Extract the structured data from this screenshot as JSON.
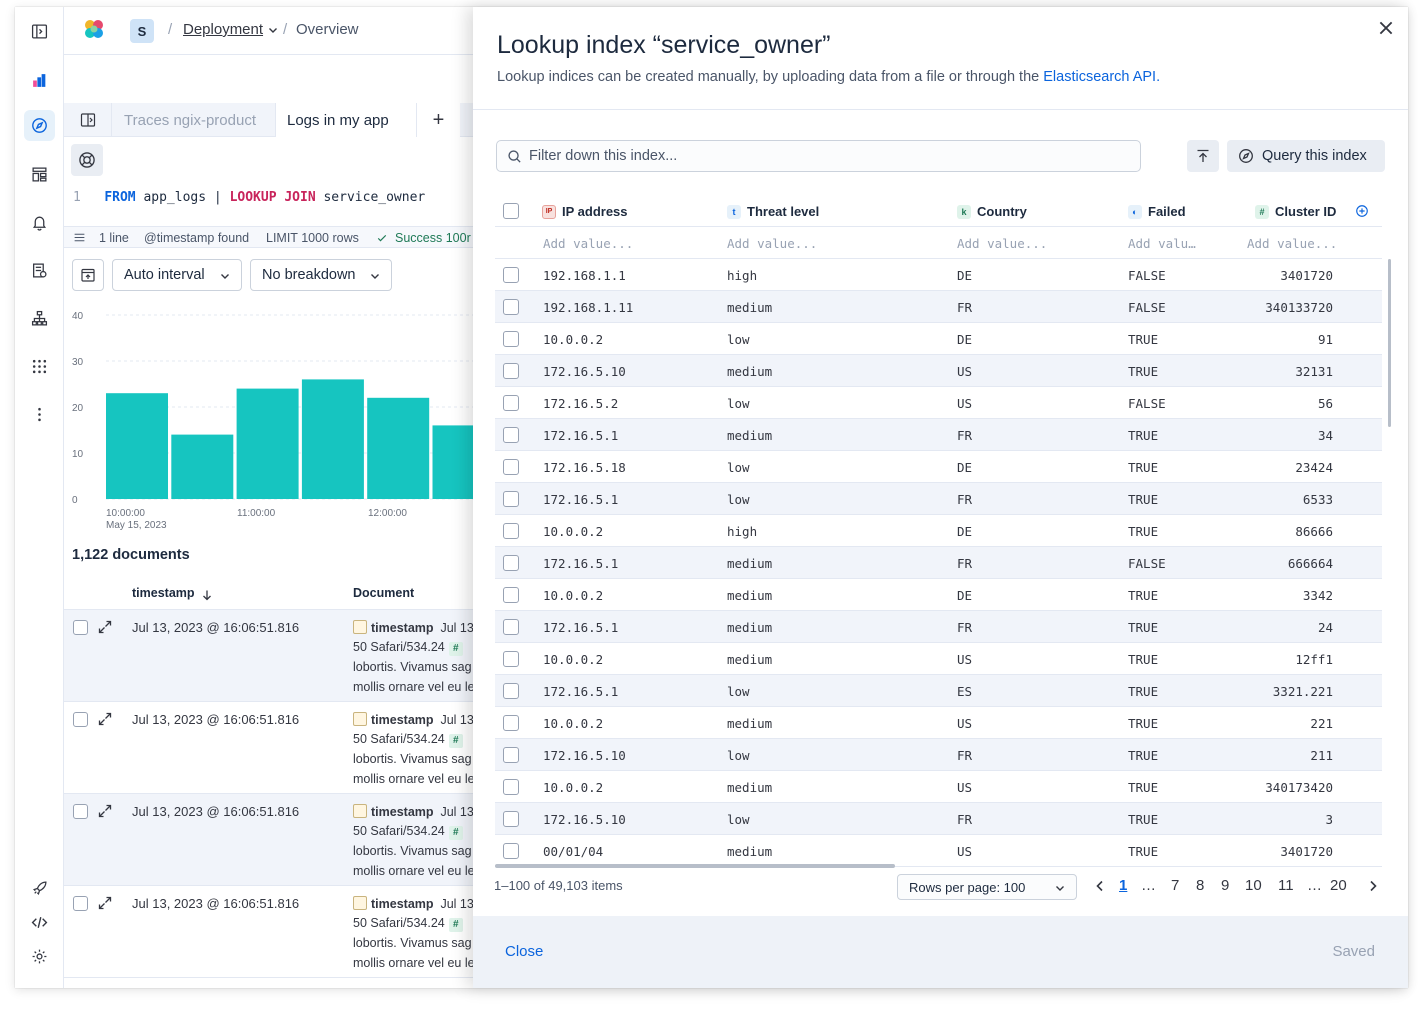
{
  "header": {
    "space_initial": "S",
    "breadcrumb_1": "Deployment",
    "breadcrumb_2": "Overview"
  },
  "tabs": [
    {
      "label": "Traces ngix-product"
    },
    {
      "label": "Logs in my app"
    }
  ],
  "query": {
    "line_no": "1",
    "from_kw": "FROM",
    "source": "app_logs",
    "pipe": "|",
    "lookup_kw": "LOOKUP JOIN",
    "target": "service_owner"
  },
  "status": {
    "lines": "1 line",
    "timestamp": "@timestamp found",
    "limit": "LIMIT 1000 rows",
    "success": "Success 100r"
  },
  "chart_controls": {
    "interval": "Auto interval",
    "breakdown": "No breakdown"
  },
  "chart_data": {
    "type": "bar",
    "y_ticks": [
      "40",
      "30",
      "20",
      "10",
      "0"
    ],
    "ylim": [
      0,
      40
    ],
    "x_ticks": [
      "10:00:00",
      "11:00:00",
      "12:00:00"
    ],
    "x_subtitle": "May 15, 2023",
    "values": [
      23,
      14,
      24,
      26,
      22,
      16
    ]
  },
  "documents": {
    "count": "1,122 documents",
    "col_timestamp": "timestamp",
    "col_document": "Document",
    "rows": [
      {
        "ts": "Jul 13, 2023 @ 16:06:51.816",
        "field": "timestamp",
        "field_val": "Jul 13",
        "line2": "50 Safari/534.24",
        "line3": "lobortis. Vivamus sag",
        "line4": "mollis ornare vel eu le"
      },
      {
        "ts": "Jul 13, 2023 @ 16:06:51.816",
        "field": "timestamp",
        "field_val": "Jul 13",
        "line2": "50 Safari/534.24",
        "line3": "lobortis. Vivamus sag",
        "line4": "mollis ornare vel eu le"
      },
      {
        "ts": "Jul 13, 2023 @ 16:06:51.816",
        "field": "timestamp",
        "field_val": "Jul 13",
        "line2": "50 Safari/534.24",
        "line3": "lobortis. Vivamus sag",
        "line4": "mollis ornare vel eu le"
      },
      {
        "ts": "Jul 13, 2023 @ 16:06:51.816",
        "field": "timestamp",
        "field_val": "Jul 13",
        "line2": "50 Safari/534.24",
        "line3": "lobortis. Vivamus sag",
        "line4": "mollis ornare vel eu le"
      }
    ]
  },
  "flyout": {
    "title": "Lookup index “service_owner”",
    "desc": "Lookup indices can be created manually, by uploading data from a file or through the",
    "desc_link": "Elasticsearch API.",
    "filter_placeholder": "Filter down this index...",
    "query_button": "Query this index",
    "columns": [
      {
        "label": "IP address",
        "type_icon": "IP"
      },
      {
        "label": "Threat level",
        "type_icon": "t"
      },
      {
        "label": "Country",
        "type_icon": "k"
      },
      {
        "label": "Failed",
        "type_icon": "◐"
      },
      {
        "label": "Cluster ID",
        "type_icon": "#"
      }
    ],
    "add_value": [
      "Add value...",
      "Add value...",
      "Add value...",
      "Add valu…",
      "Add value..."
    ],
    "rows": [
      [
        "192.168.1.1",
        "high",
        "DE",
        "FALSE",
        "3401720"
      ],
      [
        "192.168.1.11",
        "medium",
        "FR",
        "FALSE",
        "340133720"
      ],
      [
        "10.0.0.2",
        "low",
        "DE",
        "TRUE",
        "91"
      ],
      [
        "172.16.5.10",
        "medium",
        "US",
        "TRUE",
        "32131"
      ],
      [
        "172.16.5.2",
        "low",
        "US",
        "FALSE",
        "56"
      ],
      [
        "172.16.5.1",
        "medium",
        "FR",
        "TRUE",
        "34"
      ],
      [
        "172.16.5.18",
        "low",
        "DE",
        "TRUE",
        "23424"
      ],
      [
        "172.16.5.1",
        "low",
        "FR",
        "TRUE",
        "6533"
      ],
      [
        "10.0.0.2",
        "high",
        "DE",
        "TRUE",
        "86666"
      ],
      [
        "172.16.5.1",
        "medium",
        "FR",
        "FALSE",
        "666664"
      ],
      [
        "10.0.0.2",
        "medium",
        "DE",
        "TRUE",
        "3342"
      ],
      [
        "172.16.5.1",
        "medium",
        "FR",
        "TRUE",
        "24"
      ],
      [
        "10.0.0.2",
        "medium",
        "US",
        "TRUE",
        "12ff1"
      ],
      [
        "172.16.5.1",
        "low",
        "ES",
        "TRUE",
        "3321.221"
      ],
      [
        "10.0.0.2",
        "medium",
        "US",
        "TRUE",
        "221"
      ],
      [
        "172.16.5.10",
        "low",
        "FR",
        "TRUE",
        "211"
      ],
      [
        "10.0.0.2",
        "medium",
        "US",
        "TRUE",
        "340173420"
      ],
      [
        "172.16.5.10",
        "low",
        "FR",
        "TRUE",
        "3"
      ],
      [
        "00/01/04",
        "medium",
        "US",
        "TRUE",
        "3401720"
      ]
    ],
    "pagination": {
      "summary": "1–100 of 49,103 items",
      "rows_per_page": "Rows per page: 100",
      "pages": [
        "1",
        "…",
        "7",
        "8",
        "9",
        "10",
        "11",
        "…",
        "20"
      ]
    },
    "footer": {
      "close": "Close",
      "saved": "Saved"
    }
  },
  "colors": {
    "bar": "#16c5c0",
    "link": "#0b64dd",
    "accent": "#0b64dd"
  }
}
